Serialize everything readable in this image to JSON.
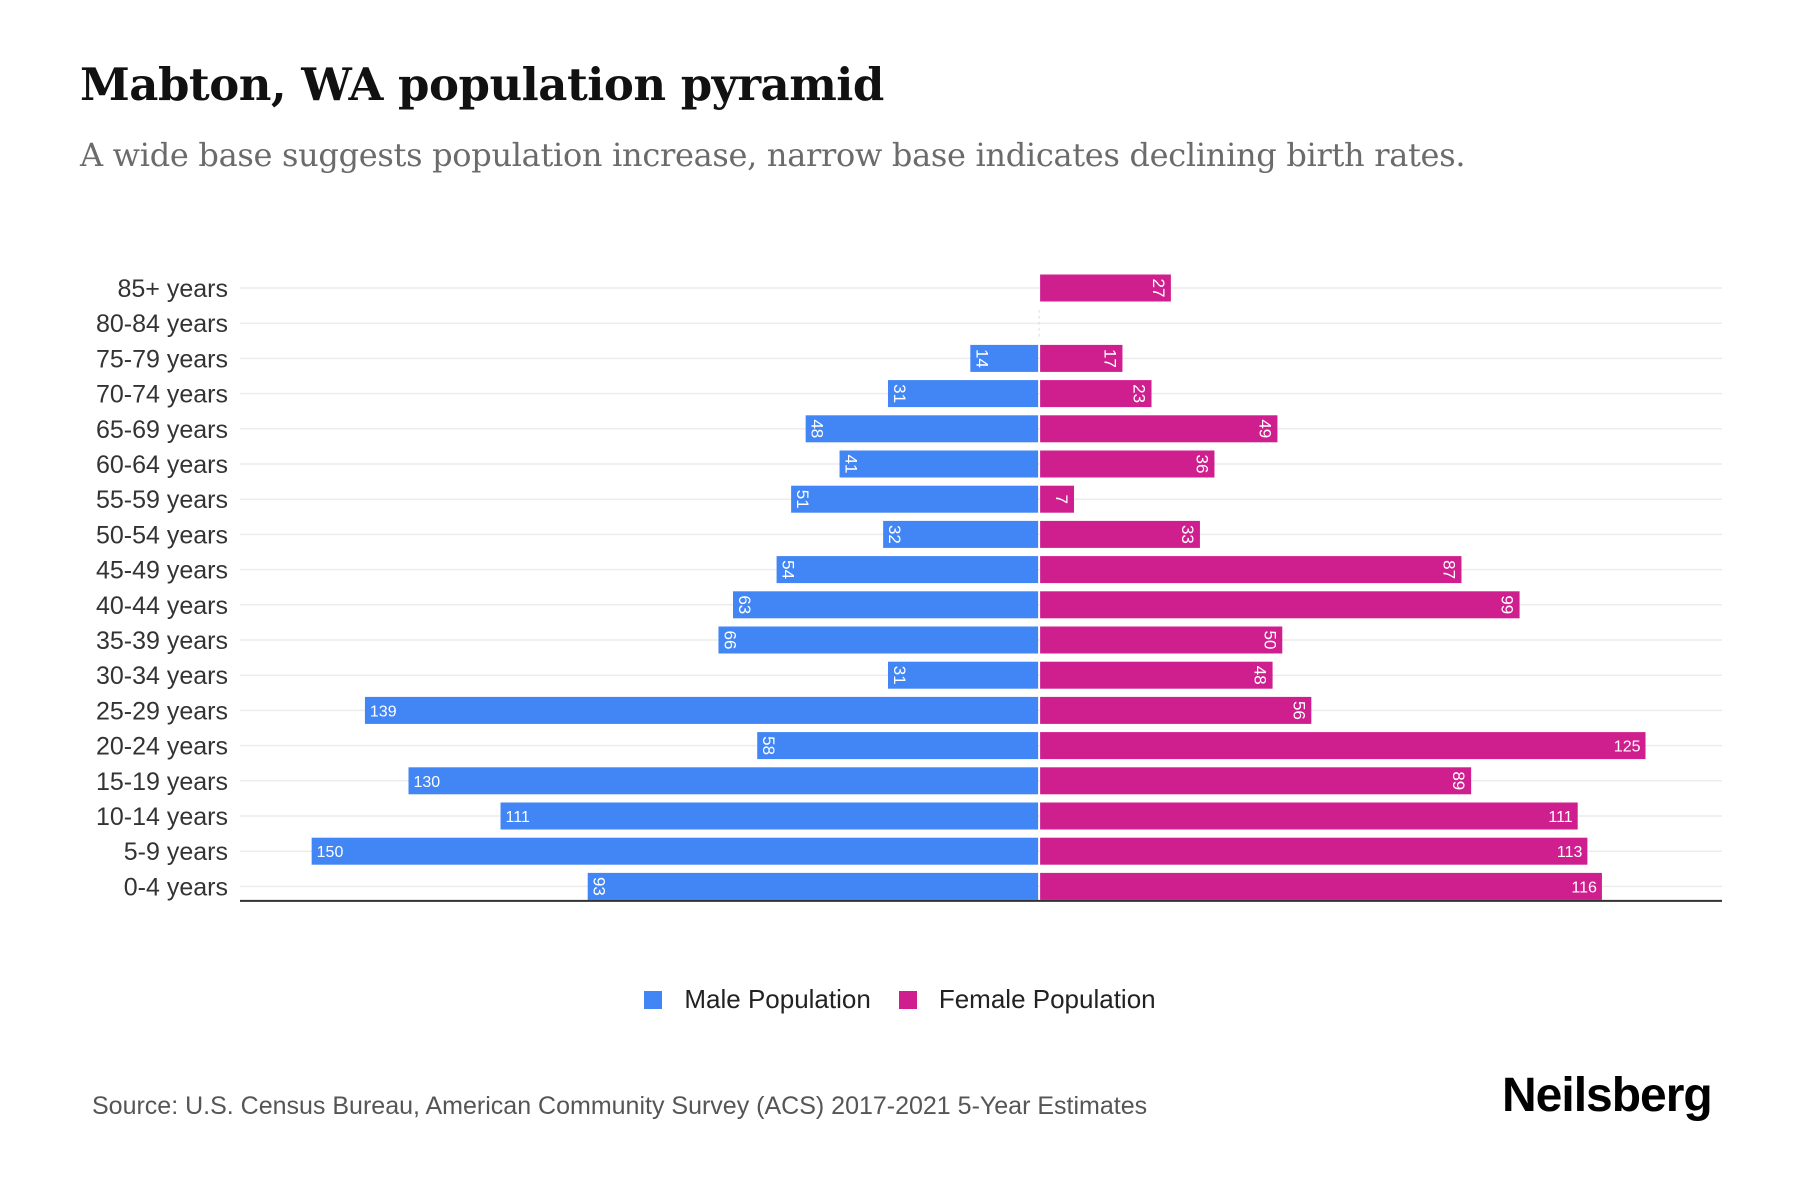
{
  "header": {
    "title": "Mabton, WA population pyramid",
    "subtitle": "A wide base suggests population increase, narrow base indicates declining birth rates."
  },
  "legend": {
    "male_label": "Male Population",
    "female_label": "Female Population"
  },
  "footer": {
    "source": "Source: U.S. Census Bureau, American Community Survey (ACS) 2017-2021 5-Year Estimates",
    "brand": "Neilsberg"
  },
  "colors": {
    "male": "#4285F4",
    "female": "#CF1F8F",
    "grid": "#ececec",
    "axis": "#333333",
    "label": "#333333"
  },
  "chart_data": {
    "type": "bar",
    "orientation": "horizontal",
    "subtype": "population-pyramid",
    "title": "Mabton, WA population pyramid",
    "subtitle": "A wide base suggests population increase, narrow base indicates declining birth rates.",
    "xlabel": "",
    "ylabel": "",
    "grid": true,
    "legend_position": "bottom-center",
    "xlim": [
      -165,
      141
    ],
    "categories": [
      "85+ years",
      "80-84 years",
      "75-79 years",
      "70-74 years",
      "65-69 years",
      "60-64 years",
      "55-59 years",
      "50-54 years",
      "45-49 years",
      "40-44 years",
      "35-39 years",
      "30-34 years",
      "25-29 years",
      "20-24 years",
      "15-19 years",
      "10-14 years",
      "5-9 years",
      "0-4 years"
    ],
    "series": [
      {
        "name": "Male Population",
        "side": "left",
        "values": [
          0,
          0,
          14,
          31,
          48,
          41,
          51,
          32,
          54,
          63,
          66,
          31,
          139,
          58,
          130,
          111,
          150,
          93
        ]
      },
      {
        "name": "Female Population",
        "side": "right",
        "values": [
          27,
          0,
          17,
          23,
          49,
          36,
          7,
          33,
          87,
          99,
          50,
          48,
          56,
          125,
          89,
          111,
          113,
          116
        ]
      }
    ]
  }
}
